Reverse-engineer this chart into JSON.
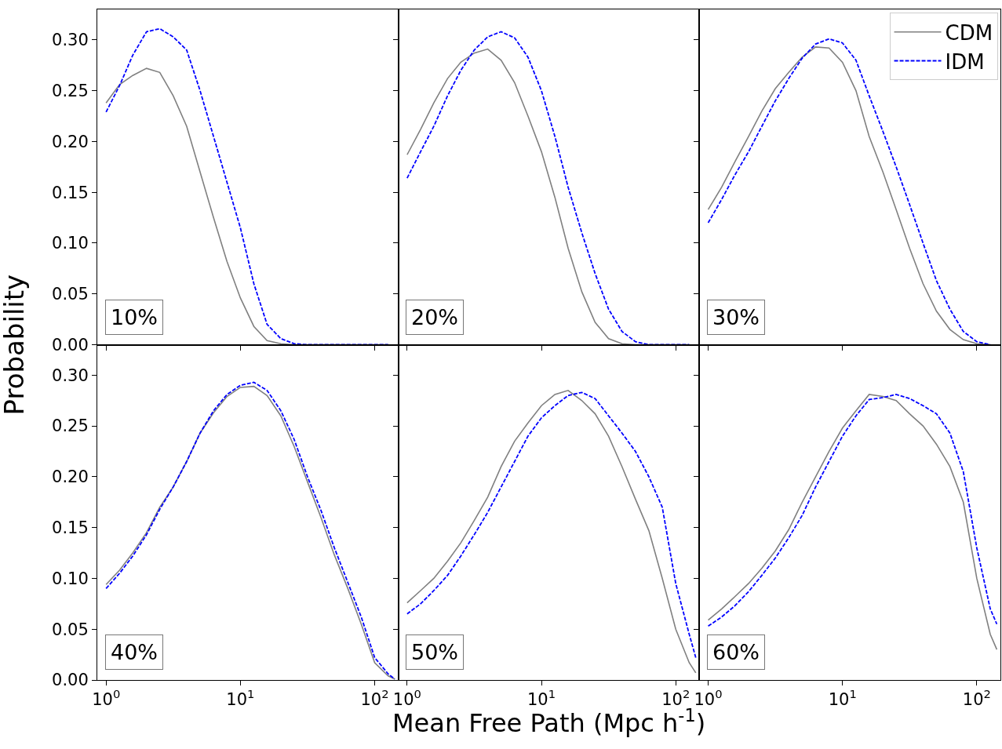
{
  "chart_data": [
    {
      "type": "line",
      "ylabel": "Probability",
      "annotations": [
        "10%"
      ],
      "tick_labels": "y",
      "log": "x",
      "xlim": [
        0.86,
        150
      ],
      "ylim": [
        0,
        0.33
      ],
      "xticks": [
        {
          "value": 1,
          "label": null
        },
        {
          "value": 10,
          "label": null
        },
        {
          "value": 100,
          "label": null
        }
      ],
      "yticks": [
        {
          "value": 0,
          "label": "0.00"
        },
        {
          "value": 0.05,
          "label": "0.05"
        },
        {
          "value": 0.1,
          "label": "0.10"
        },
        {
          "value": 0.15,
          "label": "0.15"
        },
        {
          "value": 0.2,
          "label": "0.20"
        },
        {
          "value": 0.25,
          "label": "0.25"
        },
        {
          "value": 0.3,
          "label": "0.30"
        }
      ],
      "x": [
        1,
        1.26,
        1.58,
        2,
        2.51,
        3.16,
        3.98,
        5.01,
        6.31,
        7.94,
        10,
        12.6,
        15.8,
        20,
        25.1,
        31.6,
        39.8,
        50.1,
        63.1,
        79.4,
        100,
        126
      ],
      "series": [
        {
          "color": "#808080",
          "line_style": "solid",
          "values": [
            0.238,
            0.256,
            0.265,
            0.272,
            0.268,
            0.245,
            0.215,
            0.17,
            0.125,
            0.082,
            0.046,
            0.018,
            0.004,
            0.001,
            0,
            0,
            0,
            0,
            0,
            0,
            0,
            0
          ]
        },
        {
          "color": "#0000ff",
          "line_style": "dashed",
          "values": [
            0.229,
            0.255,
            0.285,
            0.308,
            0.311,
            0.303,
            0.29,
            0.25,
            0.205,
            0.16,
            0.115,
            0.06,
            0.02,
            0.006,
            0.001,
            0,
            0,
            0,
            0,
            0,
            0,
            0
          ]
        }
      ]
    },
    {
      "type": "line",
      "annotations": [
        "20%"
      ],
      "tick_labels": false,
      "log": "x",
      "xlim": [
        0.86,
        150
      ],
      "ylim": [
        0,
        0.33
      ],
      "xticks": [
        {
          "value": 1,
          "label": null
        },
        {
          "value": 10,
          "label": null
        },
        {
          "value": 100,
          "label": null
        }
      ],
      "yticks": [
        {
          "value": 0,
          "label": null
        },
        {
          "value": 0.05,
          "label": null
        },
        {
          "value": 0.1,
          "label": null
        },
        {
          "value": 0.15,
          "label": null
        },
        {
          "value": 0.2,
          "label": null
        },
        {
          "value": 0.25,
          "label": null
        },
        {
          "value": 0.3,
          "label": null
        }
      ],
      "x": [
        1,
        1.26,
        1.58,
        2,
        2.51,
        3.16,
        3.98,
        5.01,
        6.31,
        7.94,
        10,
        12.6,
        15.8,
        20,
        25.1,
        31.6,
        39.8,
        50.1,
        63.1,
        79.4,
        100,
        126
      ],
      "series": [
        {
          "color": "#808080",
          "line_style": "solid",
          "values": [
            0.187,
            0.212,
            0.238,
            0.262,
            0.278,
            0.287,
            0.291,
            0.28,
            0.258,
            0.225,
            0.19,
            0.145,
            0.095,
            0.052,
            0.022,
            0.006,
            0.001,
            0,
            0,
            0,
            0,
            0
          ]
        },
        {
          "color": "#0000ff",
          "line_style": "dashed",
          "values": [
            0.164,
            0.19,
            0.215,
            0.245,
            0.27,
            0.29,
            0.303,
            0.308,
            0.302,
            0.283,
            0.25,
            0.205,
            0.155,
            0.11,
            0.07,
            0.035,
            0.013,
            0.003,
            0,
            0,
            0,
            0
          ]
        }
      ]
    },
    {
      "type": "line",
      "annotations": [
        "30%"
      ],
      "tick_labels": false,
      "log": "x",
      "legend": "top right",
      "xlim": [
        0.86,
        150
      ],
      "ylim": [
        0,
        0.33
      ],
      "xticks": [
        {
          "value": 1,
          "label": null
        },
        {
          "value": 10,
          "label": null
        },
        {
          "value": 100,
          "label": null
        }
      ],
      "yticks": [
        {
          "value": 0,
          "label": null
        },
        {
          "value": 0.05,
          "label": null
        },
        {
          "value": 0.1,
          "label": null
        },
        {
          "value": 0.15,
          "label": null
        },
        {
          "value": 0.2,
          "label": null
        },
        {
          "value": 0.25,
          "label": null
        },
        {
          "value": 0.3,
          "label": null
        }
      ],
      "x": [
        1,
        1.26,
        1.58,
        2,
        2.51,
        3.16,
        3.98,
        5.01,
        6.31,
        7.94,
        10,
        12.6,
        15.8,
        20,
        25.1,
        31.6,
        39.8,
        50.1,
        63.1,
        79.4,
        100,
        126
      ],
      "series": [
        {
          "name": "CDM",
          "color": "#808080",
          "line_style": "solid",
          "values": [
            0.133,
            0.155,
            0.18,
            0.205,
            0.23,
            0.252,
            0.268,
            0.283,
            0.293,
            0.292,
            0.278,
            0.25,
            0.205,
            0.17,
            0.133,
            0.095,
            0.06,
            0.033,
            0.015,
            0.005,
            0.001,
            0
          ]
        },
        {
          "name": "IDM",
          "color": "#0000ff",
          "line_style": "dashed",
          "values": [
            0.12,
            0.143,
            0.167,
            0.19,
            0.215,
            0.24,
            0.262,
            0.282,
            0.296,
            0.301,
            0.297,
            0.28,
            0.245,
            0.21,
            0.175,
            0.138,
            0.1,
            0.063,
            0.035,
            0.013,
            0.003,
            0
          ]
        }
      ]
    },
    {
      "type": "line",
      "annotations": [
        "40%"
      ],
      "log": "x",
      "xlim": [
        0.86,
        150
      ],
      "ylim": [
        0,
        0.33
      ],
      "xticks": [
        {
          "value": 1,
          "label": "10$^{0}$"
        },
        {
          "value": 10,
          "label": "10$^{1}$"
        },
        {
          "value": 100,
          "label": "10$^{2}$"
        }
      ],
      "yticks": [
        {
          "value": 0,
          "label": "0.00"
        },
        {
          "value": 0.05,
          "label": "0.05"
        },
        {
          "value": 0.1,
          "label": "0.10"
        },
        {
          "value": 0.15,
          "label": "0.15"
        },
        {
          "value": 0.2,
          "label": "0.20"
        },
        {
          "value": 0.25,
          "label": "0.25"
        },
        {
          "value": 0.3,
          "label": "0.30"
        }
      ],
      "x": [
        1,
        1.26,
        1.58,
        2,
        2.51,
        3.16,
        3.98,
        5.01,
        6.31,
        7.94,
        10,
        12.6,
        15.8,
        20,
        25.1,
        31.6,
        39.8,
        50.1,
        63.1,
        79.4,
        100,
        126,
        141
      ],
      "series": [
        {
          "color": "#808080",
          "line_style": "solid",
          "values": [
            0.094,
            0.108,
            0.125,
            0.145,
            0.17,
            0.19,
            0.215,
            0.243,
            0.263,
            0.279,
            0.288,
            0.289,
            0.28,
            0.26,
            0.23,
            0.195,
            0.16,
            0.123,
            0.09,
            0.055,
            0.017,
            0.004,
            0.001
          ]
        },
        {
          "color": "#0000ff",
          "line_style": "dashed",
          "values": [
            0.09,
            0.105,
            0.122,
            0.143,
            0.168,
            0.19,
            0.215,
            0.243,
            0.265,
            0.281,
            0.29,
            0.293,
            0.285,
            0.265,
            0.237,
            0.2,
            0.167,
            0.13,
            0.096,
            0.062,
            0.022,
            0.006,
            0.001
          ]
        }
      ]
    },
    {
      "type": "line",
      "xlabel": "Mean Free Path (Mpc h$^{-1}$)",
      "annotations": [
        "50%"
      ],
      "tick_labels": "x",
      "log": "x",
      "xlim": [
        0.86,
        150
      ],
      "ylim": [
        0,
        0.33
      ],
      "xticks": [
        {
          "value": 1,
          "label": "10$^{0}$"
        },
        {
          "value": 10,
          "label": "10$^{1}$"
        },
        {
          "value": 100,
          "label": "10$^{2}$"
        }
      ],
      "yticks": [
        {
          "value": 0,
          "label": null
        },
        {
          "value": 0.05,
          "label": null
        },
        {
          "value": 0.1,
          "label": null
        },
        {
          "value": 0.15,
          "label": null
        },
        {
          "value": 0.2,
          "label": null
        },
        {
          "value": 0.25,
          "label": null
        },
        {
          "value": 0.3,
          "label": null
        }
      ],
      "x": [
        1,
        1.26,
        1.58,
        2,
        2.51,
        3.16,
        3.98,
        5.01,
        6.31,
        7.94,
        10,
        12.6,
        15.8,
        20,
        25.1,
        31.6,
        39.8,
        50.1,
        63.1,
        79.4,
        100,
        126,
        141
      ],
      "series": [
        {
          "color": "#808080",
          "line_style": "solid",
          "values": [
            0.076,
            0.088,
            0.1,
            0.117,
            0.135,
            0.157,
            0.18,
            0.21,
            0.235,
            0.253,
            0.27,
            0.281,
            0.285,
            0.275,
            0.262,
            0.24,
            0.21,
            0.178,
            0.147,
            0.1,
            0.05,
            0.017,
            0.007
          ]
        },
        {
          "color": "#0000ff",
          "line_style": "dashed",
          "values": [
            0.065,
            0.075,
            0.088,
            0.103,
            0.122,
            0.143,
            0.165,
            0.19,
            0.215,
            0.24,
            0.258,
            0.27,
            0.28,
            0.283,
            0.277,
            0.26,
            0.243,
            0.225,
            0.2,
            0.17,
            0.095,
            0.045,
            0.022
          ]
        }
      ]
    },
    {
      "type": "line",
      "annotations": [
        "60%"
      ],
      "tick_labels": "x",
      "log": "x",
      "xlim": [
        0.86,
        150
      ],
      "ylim": [
        0,
        0.33
      ],
      "xticks": [
        {
          "value": 1,
          "label": "10$^{0}$"
        },
        {
          "value": 10,
          "label": "10$^{1}$"
        },
        {
          "value": 100,
          "label": "10$^{2}$"
        }
      ],
      "yticks": [
        {
          "value": 0,
          "label": null
        },
        {
          "value": 0.05,
          "label": null
        },
        {
          "value": 0.1,
          "label": null
        },
        {
          "value": 0.15,
          "label": null
        },
        {
          "value": 0.2,
          "label": null
        },
        {
          "value": 0.25,
          "label": null
        },
        {
          "value": 0.3,
          "label": null
        }
      ],
      "x": [
        1,
        1.26,
        1.58,
        2,
        2.51,
        3.16,
        3.98,
        5.01,
        6.31,
        7.94,
        10,
        12.6,
        15.8,
        20,
        25.1,
        31.6,
        39.8,
        50.1,
        63.1,
        79.4,
        100,
        126,
        141
      ],
      "series": [
        {
          "color": "#808080",
          "line_style": "solid",
          "values": [
            0.059,
            0.07,
            0.082,
            0.095,
            0.11,
            0.127,
            0.148,
            0.175,
            0.2,
            0.225,
            0.248,
            0.265,
            0.281,
            0.279,
            0.275,
            0.262,
            0.25,
            0.232,
            0.21,
            0.175,
            0.1,
            0.045,
            0.03
          ]
        },
        {
          "color": "#0000ff",
          "line_style": "dashed",
          "values": [
            0.053,
            0.062,
            0.073,
            0.087,
            0.103,
            0.12,
            0.14,
            0.162,
            0.19,
            0.215,
            0.24,
            0.26,
            0.276,
            0.278,
            0.281,
            0.277,
            0.27,
            0.262,
            0.243,
            0.205,
            0.13,
            0.07,
            0.055
          ]
        }
      ]
    }
  ]
}
